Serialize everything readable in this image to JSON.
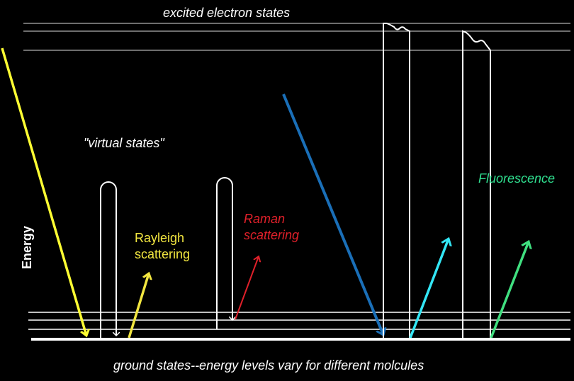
{
  "diagram": {
    "title_top": "excited electron states",
    "virtual_states": "\"virtual states\"",
    "energy_axis": "Energy",
    "rayleigh_line1": "Rayleigh",
    "rayleigh_line2": "scattering",
    "raman_line1": "Raman",
    "raman_line2": "scattering",
    "fluorescence": "Fluorescence",
    "ground_states": "ground states--energy levels vary for different molcules"
  },
  "colors": {
    "background": "#000000",
    "levels": "#ffffff",
    "incident_rayleigh": "#ffff33",
    "rayleigh": "#f2e640",
    "raman": "#e0202a",
    "incident_fluorescence": "#1a6fb8",
    "fluorescence_emission_1": "#33e6f5",
    "fluorescence_emission_2": "#40e080",
    "fluorescence_label": "#30e090"
  }
}
